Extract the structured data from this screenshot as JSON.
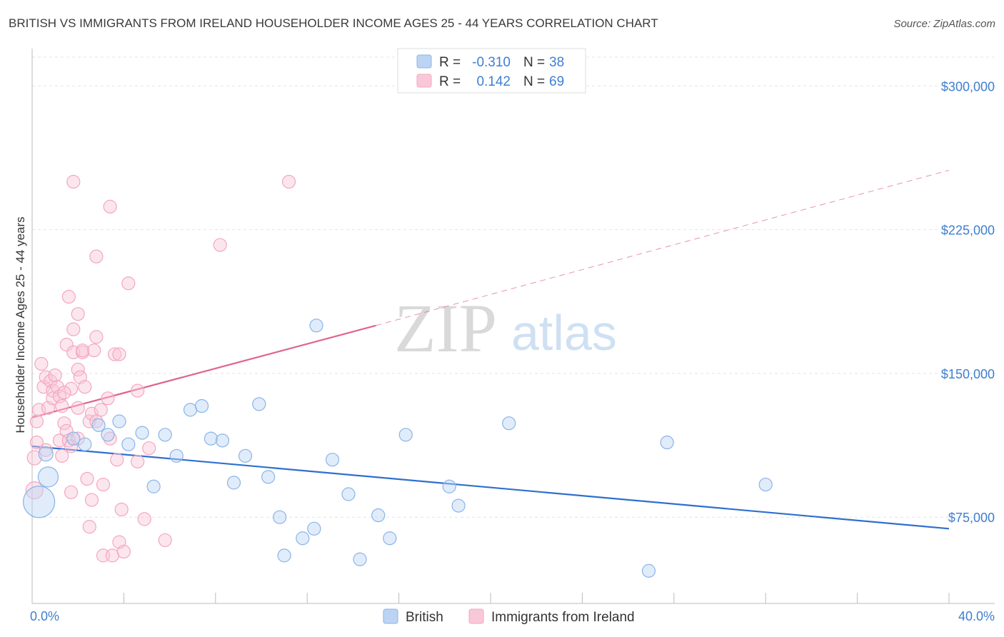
{
  "chart_data": {
    "type": "scatter",
    "title": "BRITISH VS IMMIGRANTS FROM IRELAND HOUSEHOLDER INCOME AGES 25 - 44 YEARS CORRELATION CHART",
    "source": "Source: ZipAtlas.com",
    "ylabel": "Householder Income Ages 25 - 44 years",
    "xlim": [
      0,
      40
    ],
    "ylim": [
      30000,
      315000
    ],
    "x_tick_labels": [
      "0.0%",
      "40.0%"
    ],
    "y_ticks": [
      75000,
      150000,
      225000,
      300000
    ],
    "y_tick_labels": [
      "$75,000",
      "$150,000",
      "$225,000",
      "$300,000"
    ],
    "grid": true,
    "watermark": {
      "zip": "ZIP",
      "atlas": "atlas"
    },
    "legend_top": {
      "rows": [
        {
          "r_label": "R =",
          "r_value": "-0.310",
          "n_label": "N =",
          "n_value": "38"
        },
        {
          "r_label": "R =",
          "r_value": "0.142",
          "n_label": "N =",
          "n_value": "69"
        }
      ]
    },
    "series": [
      {
        "name": "British",
        "color": "#8ab4e8",
        "line_color": "#2f6fce",
        "trend": {
          "x0": 0,
          "y0": 112000,
          "x1": 40,
          "y1": 69000
        },
        "points": [
          [
            0.3,
            83000,
            22
          ],
          [
            0.7,
            96000,
            14
          ],
          [
            0.6,
            108000,
            10
          ],
          [
            1.8,
            116000,
            9
          ],
          [
            2.3,
            113000,
            9
          ],
          [
            2.9,
            123000,
            9
          ],
          [
            3.3,
            118000,
            9
          ],
          [
            3.8,
            125000,
            9
          ],
          [
            4.2,
            113000,
            9
          ],
          [
            4.8,
            119000,
            9
          ],
          [
            5.3,
            91000,
            9
          ],
          [
            5.8,
            118000,
            9
          ],
          [
            6.3,
            107000,
            9
          ],
          [
            6.9,
            131000,
            9
          ],
          [
            7.4,
            133000,
            9
          ],
          [
            7.8,
            116000,
            9
          ],
          [
            8.3,
            115000,
            9
          ],
          [
            8.8,
            93000,
            9
          ],
          [
            9.3,
            107000,
            9
          ],
          [
            9.9,
            134000,
            9
          ],
          [
            10.3,
            96000,
            9
          ],
          [
            10.8,
            75000,
            9
          ],
          [
            11.0,
            55000,
            9
          ],
          [
            11.8,
            64000,
            9
          ],
          [
            12.3,
            69000,
            9
          ],
          [
            12.4,
            175000,
            9
          ],
          [
            13.1,
            105000,
            9
          ],
          [
            13.8,
            87000,
            9
          ],
          [
            14.3,
            53000,
            9
          ],
          [
            15.1,
            76000,
            9
          ],
          [
            15.6,
            64000,
            9
          ],
          [
            16.3,
            118000,
            9
          ],
          [
            18.2,
            91000,
            9
          ],
          [
            18.6,
            81000,
            9
          ],
          [
            20.8,
            124000,
            9
          ],
          [
            26.9,
            47000,
            9
          ],
          [
            27.7,
            114000,
            9
          ],
          [
            32.0,
            92000,
            9
          ]
        ]
      },
      {
        "name": "Immigrants from Ireland",
        "color": "#f4a6c0",
        "line_color": "#e0648e",
        "trend": {
          "x0": 0,
          "y0": 127000,
          "x1": 15,
          "y1": 175000
        },
        "trend_extension": {
          "x0": 15,
          "y0": 175000,
          "x1": 40,
          "y1": 256000
        },
        "points": [
          [
            0.1,
            89000,
            12
          ],
          [
            0.1,
            106000,
            10
          ],
          [
            0.2,
            114000,
            9
          ],
          [
            0.2,
            125000,
            9
          ],
          [
            0.3,
            131000,
            9
          ],
          [
            0.4,
            155000,
            9
          ],
          [
            0.5,
            143000,
            9
          ],
          [
            0.6,
            148000,
            9
          ],
          [
            0.7,
            132000,
            9
          ],
          [
            0.8,
            146000,
            9
          ],
          [
            0.9,
            141000,
            9
          ],
          [
            0.9,
            137000,
            9
          ],
          [
            1.0,
            149000,
            9
          ],
          [
            1.1,
            143000,
            9
          ],
          [
            1.2,
            138000,
            9
          ],
          [
            1.2,
            115000,
            9
          ],
          [
            1.3,
            107000,
            9
          ],
          [
            1.3,
            133000,
            9
          ],
          [
            1.4,
            124000,
            9
          ],
          [
            1.5,
            120000,
            9
          ],
          [
            1.5,
            165000,
            9
          ],
          [
            1.6,
            115000,
            9
          ],
          [
            1.7,
            142000,
            9
          ],
          [
            1.7,
            112000,
            9
          ],
          [
            1.6,
            190000,
            9
          ],
          [
            1.7,
            88000,
            9
          ],
          [
            1.8,
            161000,
            9
          ],
          [
            1.8,
            173000,
            9
          ],
          [
            1.8,
            250000,
            9
          ],
          [
            2.0,
            181000,
            9
          ],
          [
            2.0,
            152000,
            9
          ],
          [
            2.0,
            132000,
            9
          ],
          [
            2.1,
            148000,
            9
          ],
          [
            2.2,
            161000,
            9
          ],
          [
            2.2,
            162000,
            9
          ],
          [
            2.3,
            143000,
            9
          ],
          [
            2.5,
            125000,
            9
          ],
          [
            2.5,
            70000,
            9
          ],
          [
            2.6,
            84000,
            9
          ],
          [
            2.6,
            129000,
            9
          ],
          [
            2.7,
            162000,
            9
          ],
          [
            2.8,
            169000,
            9
          ],
          [
            2.8,
            125000,
            9
          ],
          [
            2.8,
            211000,
            9
          ],
          [
            3.0,
            131000,
            9
          ],
          [
            3.1,
            92000,
            9
          ],
          [
            3.1,
            55000,
            9
          ],
          [
            3.3,
            137000,
            9
          ],
          [
            3.4,
            237000,
            9
          ],
          [
            3.4,
            116000,
            9
          ],
          [
            3.5,
            55000,
            9
          ],
          [
            3.6,
            160000,
            9
          ],
          [
            3.7,
            105000,
            9
          ],
          [
            3.8,
            62000,
            9
          ],
          [
            3.8,
            160000,
            9
          ],
          [
            3.9,
            79000,
            9
          ],
          [
            4.0,
            57000,
            9
          ],
          [
            4.2,
            197000,
            9
          ],
          [
            4.6,
            141000,
            9
          ],
          [
            4.6,
            104000,
            9
          ],
          [
            4.9,
            74000,
            9
          ],
          [
            5.1,
            111000,
            9
          ],
          [
            5.8,
            63000,
            9
          ],
          [
            8.2,
            217000,
            9
          ],
          [
            11.2,
            250000,
            9
          ],
          [
            2.0,
            116000,
            9
          ],
          [
            1.4,
            140000,
            9
          ],
          [
            0.6,
            110000,
            9
          ],
          [
            2.4,
            95000,
            9
          ]
        ]
      }
    ]
  }
}
